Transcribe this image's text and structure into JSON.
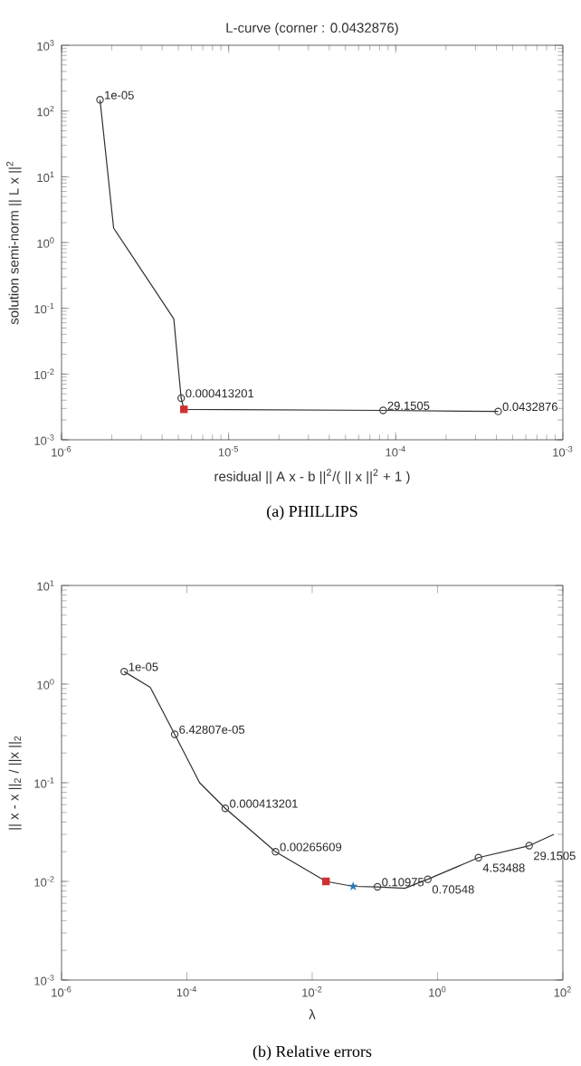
{
  "chart_data": [
    {
      "type": "line",
      "title": "L-curve (corner : 0.0432876)",
      "xlabel": "residual || A x - b ||$^{2}$/( || x ||$^{2}$ + 1 )",
      "ylabel": "solution semi-norm || L x ||$^{2}$",
      "log": "xy",
      "xlim": [
        1e-06,
        0.001
      ],
      "ylim": [
        0.001,
        1000.0
      ],
      "xticks": [
        {
          "value": 1e-06,
          "label": "10$^{-6}$"
        },
        {
          "value": 1e-05,
          "label": "10$^{-5}$"
        },
        {
          "value": 0.0001,
          "label": "10$^{-4}$"
        },
        {
          "value": 0.001,
          "label": "10$^{-3}$"
        }
      ],
      "yticks": [
        {
          "value": 0.001,
          "label": "10$^{-3}$"
        },
        {
          "value": 0.01,
          "label": "10$^{-2}$"
        },
        {
          "value": 0.1,
          "label": "10$^{-1}$"
        },
        {
          "value": 1,
          "label": "10$^{0}$"
        },
        {
          "value": 10,
          "label": "10$^{1}$"
        },
        {
          "value": 100,
          "label": "10$^{2}$"
        },
        {
          "value": 1000,
          "label": "10$^{3}$"
        }
      ],
      "series": [
        {
          "color": "#303030",
          "x": [
            1.7e-06,
            2.05e-06,
            4.7e-06,
            5e-06,
            5.2e-06,
            5.4e-06,
            8.4e-05,
            0.00041
          ],
          "values": [
            148,
            1.66,
            0.069,
            0.0123,
            0.0043,
            0.0029,
            0.0028,
            0.0027
          ]
        },
        {
          "type": "scatter",
          "marker": "circle",
          "color": "#404040",
          "x": [
            1.7e-06,
            5.2e-06,
            8.4e-05,
            0.00041
          ],
          "values": [
            148,
            0.0043,
            0.0028,
            0.0027
          ]
        },
        {
          "type": "scatter",
          "marker": "square",
          "color": "#d03030",
          "x": [
            5.4e-06
          ],
          "values": [
            0.0029
          ]
        }
      ],
      "annotations": [
        {
          "text": "1e-05",
          "x": 1.7e-06,
          "y": 148
        },
        {
          "text": "0.000413201",
          "x": 5.2e-06,
          "y": 0.0043
        },
        {
          "text": "29.1505",
          "x": 8.4e-05,
          "y": 0.0028
        },
        {
          "text": "0.0432876",
          "x": 0.00041,
          "y": 0.0027
        },
        "(a) PHILLIPS"
      ]
    },
    {
      "type": "line",
      "xlabel": "λ",
      "ylabel": "|| x - x ||$_{2}$ / ||x ||$_{2}$",
      "log": "xy",
      "xlim": [
        1e-06,
        100
      ],
      "ylim": [
        0.001,
        10
      ],
      "xticks": [
        {
          "value": 1e-06,
          "label": "10$^{-6}$"
        },
        {
          "value": 0.0001,
          "label": "10$^{-4}$"
        },
        {
          "value": 0.01,
          "label": "10$^{-2}$"
        },
        {
          "value": 1,
          "label": "10$^{0}$"
        },
        {
          "value": 100,
          "label": "10$^{2}$"
        }
      ],
      "yticks": [
        {
          "value": 0.001,
          "label": "10$^{-3}$"
        },
        {
          "value": 0.01,
          "label": "10$^{-2}$"
        },
        {
          "value": 0.1,
          "label": "10$^{-1}$"
        },
        {
          "value": 1,
          "label": "10$^{0}$"
        },
        {
          "value": 10,
          "label": "10$^{1}$"
        }
      ],
      "series": [
        {
          "color": "#303030",
          "x": [
            1e-05,
            2.6e-05,
            6.4e-05,
            0.00016,
            0.00041,
            0.0026,
            0.0166,
            0.045,
            0.11,
            0.3,
            0.7,
            4.5,
            29,
            72
          ],
          "values": [
            1.34,
            0.93,
            0.31,
            0.1,
            0.055,
            0.02,
            0.01,
            0.0089,
            0.0088,
            0.0085,
            0.0105,
            0.0174,
            0.023,
            0.03
          ]
        },
        {
          "type": "scatter",
          "marker": "circle",
          "color": "#404040",
          "x": [
            1e-05,
            6.4e-05,
            0.00041,
            0.0026,
            0.11,
            0.7,
            4.5,
            29
          ],
          "values": [
            1.34,
            0.31,
            0.055,
            0.02,
            0.0088,
            0.0105,
            0.0174,
            0.023
          ]
        },
        {
          "type": "scatter",
          "marker": "square",
          "color": "#d03030",
          "x": [
            0.0166
          ],
          "values": [
            0.01
          ]
        },
        {
          "type": "scatter",
          "marker": "star",
          "color": "#2a7ab8",
          "x": [
            0.045
          ],
          "values": [
            0.0089
          ]
        }
      ],
      "annotations": [
        {
          "text": "1e-05",
          "x": 1e-05,
          "y": 1.34
        },
        {
          "text": "6.42807e-05",
          "x": 6.4e-05,
          "y": 0.31
        },
        {
          "text": "0.000413201",
          "x": 0.00041,
          "y": 0.055
        },
        {
          "text": "0.00265609",
          "x": 0.0026,
          "y": 0.02
        },
        {
          "text": "0.10975",
          "x": 0.11,
          "y": 0.0088
        },
        {
          "text": "0.70548",
          "x": 0.7,
          "y": 0.0105
        },
        {
          "text": "4.53488",
          "x": 4.5,
          "y": 0.0174
        },
        {
          "text": "29.1505",
          "x": 29,
          "y": 0.023
        },
        "(b) Relative errors"
      ]
    }
  ]
}
